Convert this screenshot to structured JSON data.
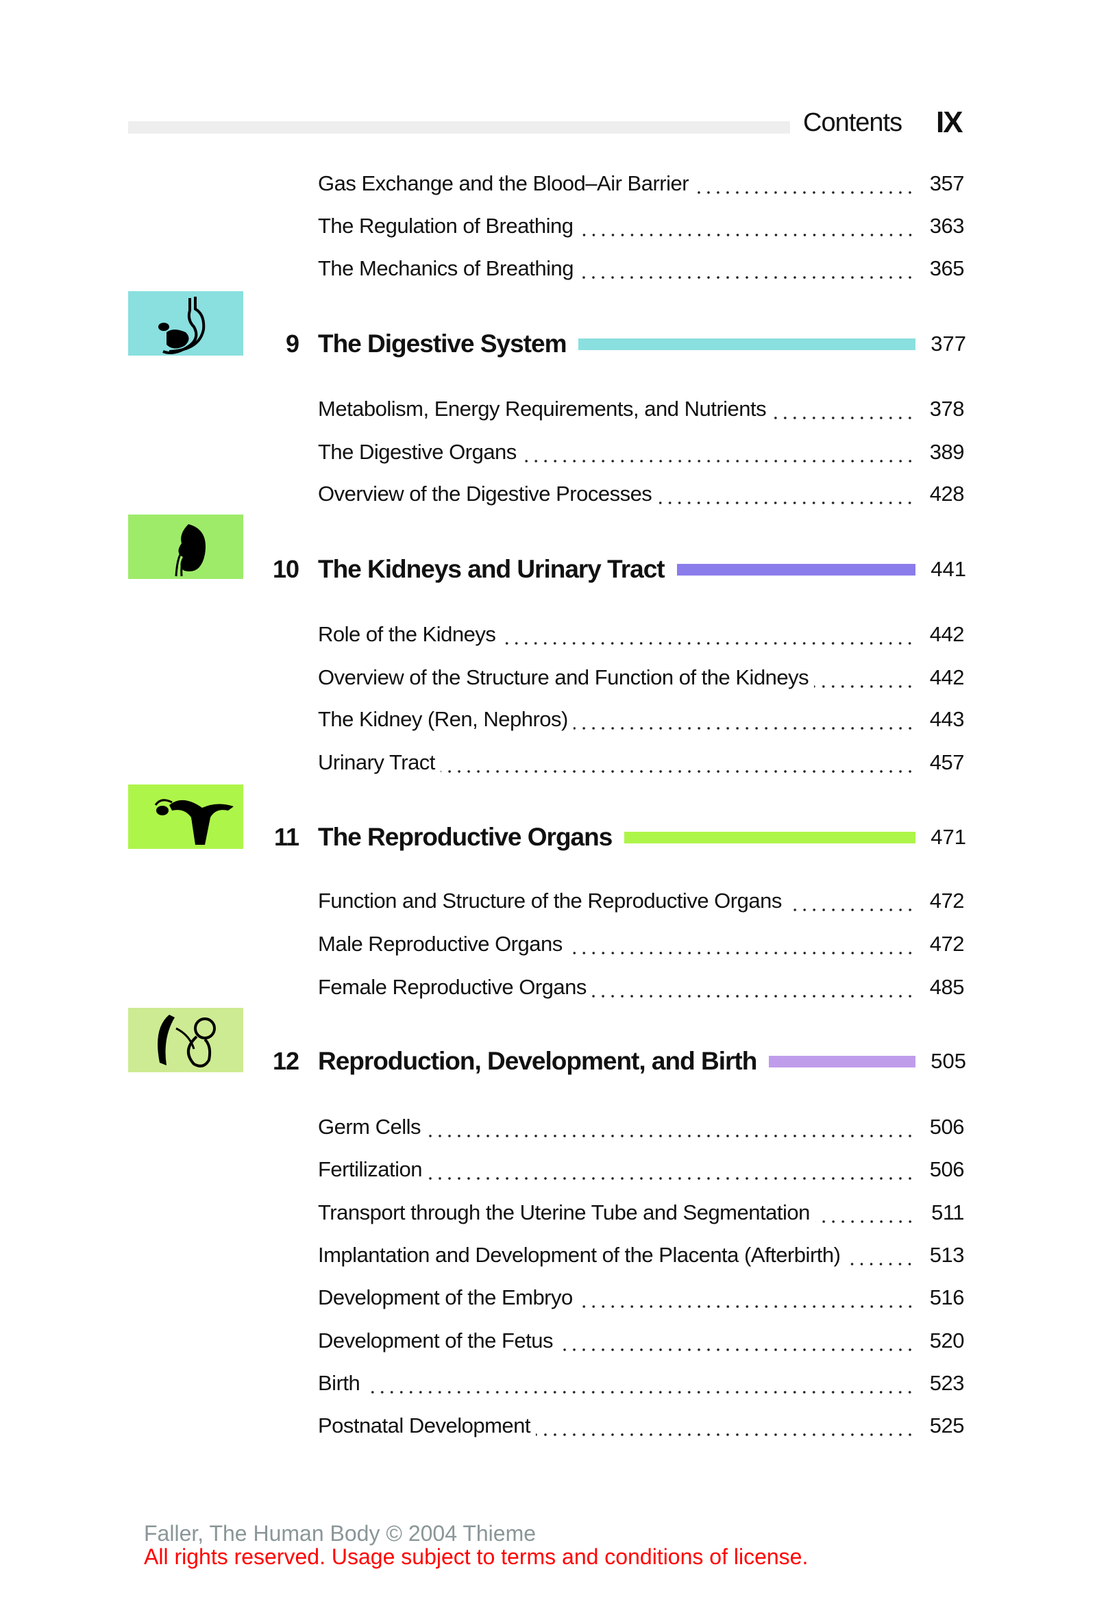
{
  "header": {
    "title": "Contents",
    "page": "IX"
  },
  "colors": {
    "ch9": "#8adfdf",
    "ch10": "#9eeb6a",
    "ch10_bar": "#8b7ceb",
    "ch11": "#aef54a",
    "ch12": "#cdeb92",
    "ch12_bar": "#c09deb",
    "header_bar": "#eeeeee"
  },
  "pre_entries": [
    {
      "title": "Gas Exchange and the Blood–Air Barrier",
      "page": "357"
    },
    {
      "title": "The Regulation of Breathing",
      "page": "363"
    },
    {
      "title": "The Mechanics of Breathing",
      "page": "365"
    }
  ],
  "chapters": [
    {
      "number": "9",
      "title": "The Digestive System",
      "page": "377",
      "icon": "stomach-icon",
      "entries": [
        {
          "title": "Metabolism, Energy Requirements, and Nutrients",
          "page": "378"
        },
        {
          "title": "The Digestive Organs",
          "page": "389"
        },
        {
          "title": "Overview of the Digestive Processes",
          "page": "428"
        }
      ]
    },
    {
      "number": "10",
      "title": "The Kidneys and Urinary Tract",
      "page": "441",
      "icon": "kidney-icon",
      "entries": [
        {
          "title": "Role of the Kidneys",
          "page": "442"
        },
        {
          "title": "Overview of the Structure and Function of the Kidneys",
          "page": "442"
        },
        {
          "title": "The Kidney (Ren, Nephros)",
          "page": "443"
        },
        {
          "title": "Urinary Tract",
          "page": "457"
        }
      ]
    },
    {
      "number": "11",
      "title": "The Reproductive Organs",
      "page": "471",
      "icon": "uterus-icon",
      "entries": [
        {
          "title": "Function and Structure of the Reproductive Organs",
          "page": "472"
        },
        {
          "title": "Male Reproductive Organs",
          "page": "472"
        },
        {
          "title": "Female Reproductive Organs",
          "page": "485"
        }
      ]
    },
    {
      "number": "12",
      "title": "Reproduction, Development, and Birth",
      "page": "505",
      "icon": "embryo-icon",
      "entries": [
        {
          "title": "Germ Cells",
          "page": "506"
        },
        {
          "title": "Fertilization",
          "page": "506"
        },
        {
          "title": "Transport through the Uterine Tube and Segmentation",
          "page": "511"
        },
        {
          "title": "Implantation and Development of the Placenta (Afterbirth)",
          "page": "513"
        },
        {
          "title": "Development of the Embryo",
          "page": "516"
        },
        {
          "title": "Development of the Fetus",
          "page": "520"
        },
        {
          "title": "Birth",
          "page": "523"
        },
        {
          "title": "Postnatal Development",
          "page": "525"
        }
      ]
    }
  ],
  "footer": {
    "line1": "Faller, The Human Body © 2004 Thieme",
    "line2": "All rights reserved. Usage subject to terms and conditions of license."
  }
}
